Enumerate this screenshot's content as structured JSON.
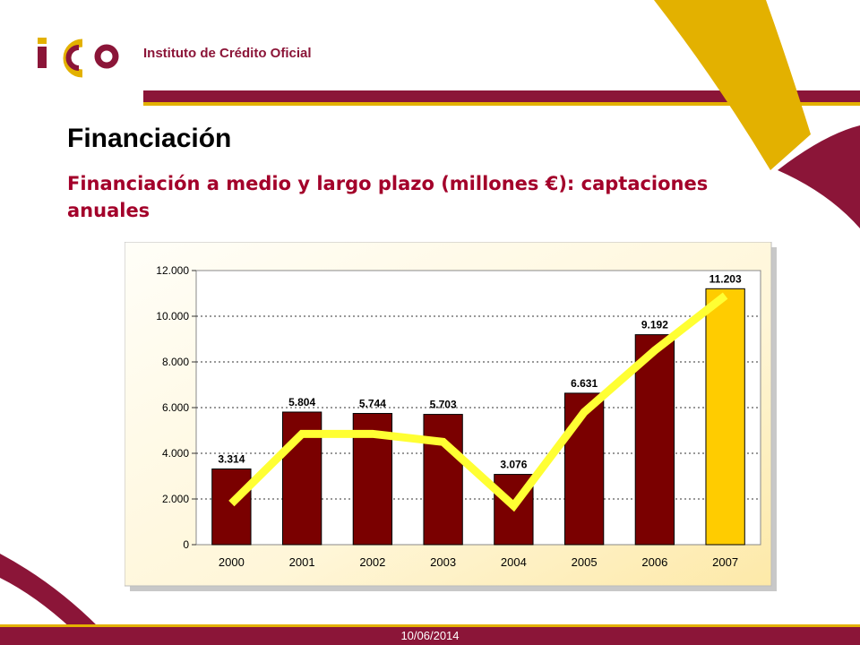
{
  "header": {
    "logo_label": "Instituto de Crédito Oficial"
  },
  "slide": {
    "title": "Financiación",
    "subtitle": "Financiación a medio y largo plazo (millones €): captaciones anuales"
  },
  "footer": {
    "date": "10/06/2014"
  },
  "colors": {
    "brand_red": "#8b1538",
    "brand_yellow": "#e3b100",
    "subtitle_red": "#a3002a",
    "bar_dark": "#7a0000",
    "bar_highlight": "#ffcc00",
    "trend_line": "#ffff33"
  },
  "chart_data": {
    "type": "bar",
    "categories": [
      "2000",
      "2001",
      "2002",
      "2003",
      "2004",
      "2005",
      "2006",
      "2007"
    ],
    "values": [
      3314,
      5804,
      5744,
      5703,
      3076,
      6631,
      9192,
      11203
    ],
    "value_labels": [
      "3.314",
      "5.804",
      "5.744",
      "5.703",
      "3.076",
      "6.631",
      "9.192",
      "11.203"
    ],
    "highlight_index": 7,
    "trend_line": {
      "type": "line",
      "values": [
        1800,
        4850,
        4850,
        4500,
        1700,
        5800,
        8500,
        10900
      ]
    },
    "ylim": [
      0,
      12000
    ],
    "yticks": [
      0,
      2000,
      4000,
      6000,
      8000,
      10000,
      12000
    ],
    "ytick_labels": [
      "0",
      "2.000",
      "4.000",
      "6.000",
      "8.000",
      "10.000",
      "12.000"
    ],
    "grid": "horizontal-dashed",
    "legend": "none",
    "title": "",
    "xlabel": "",
    "ylabel": ""
  }
}
